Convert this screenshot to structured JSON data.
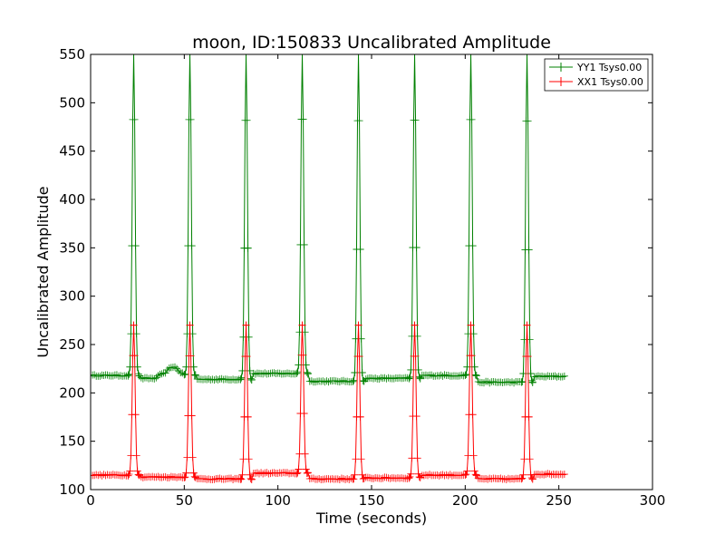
{
  "chart_data": {
    "type": "line",
    "title": "moon, ID:150833 Uncalibrated Amplitude",
    "xlabel": "Time (seconds)",
    "ylabel": "Uncalibrated Amplitude",
    "xlim": [
      0,
      300
    ],
    "ylim": [
      100,
      550
    ],
    "xticks": [
      0,
      50,
      100,
      150,
      200,
      250,
      300
    ],
    "yticks": [
      100,
      150,
      200,
      250,
      300,
      350,
      400,
      450,
      500,
      550
    ],
    "grid": false,
    "legend_position": "top-right",
    "sample_step_seconds": 1,
    "x_range": [
      0,
      253
    ],
    "series": [
      {
        "name": "YY1 Tsys0.00",
        "color": "#008000",
        "marker": "+",
        "peak_times": [
          23,
          53,
          83,
          113,
          143,
          173,
          203,
          233
        ],
        "peak_value": 550,
        "baseline_segments": [
          {
            "from": 0,
            "to": 20,
            "value": 218
          },
          {
            "from": 27,
            "to": 35,
            "value": 215
          },
          {
            "from": 35,
            "to": 50,
            "value": 218,
            "bump_center": 44,
            "bump_height": 9,
            "bump_width": 4
          },
          {
            "from": 57,
            "to": 80,
            "value": 214
          },
          {
            "from": 87,
            "to": 110,
            "value": 220
          },
          {
            "from": 117,
            "to": 140,
            "value": 212
          },
          {
            "from": 147,
            "to": 170,
            "value": 215
          },
          {
            "from": 177,
            "to": 200,
            "value": 218
          },
          {
            "from": 207,
            "to": 230,
            "value": 211
          },
          {
            "from": 237,
            "to": 253,
            "value": 217
          }
        ]
      },
      {
        "name": "XX1 Tsys0.00",
        "color": "#ff0000",
        "marker": "+",
        "peak_times": [
          23,
          53,
          83,
          113,
          143,
          173,
          203,
          233
        ],
        "peak_value": 270,
        "baseline_segments": [
          {
            "from": 0,
            "to": 20,
            "value": 115
          },
          {
            "from": 27,
            "to": 50,
            "value": 113
          },
          {
            "from": 57,
            "to": 80,
            "value": 111
          },
          {
            "from": 87,
            "to": 110,
            "value": 117
          },
          {
            "from": 117,
            "to": 140,
            "value": 111
          },
          {
            "from": 147,
            "to": 170,
            "value": 112
          },
          {
            "from": 177,
            "to": 200,
            "value": 115
          },
          {
            "from": 207,
            "to": 230,
            "value": 111
          },
          {
            "from": 237,
            "to": 253,
            "value": 116
          }
        ]
      }
    ]
  }
}
